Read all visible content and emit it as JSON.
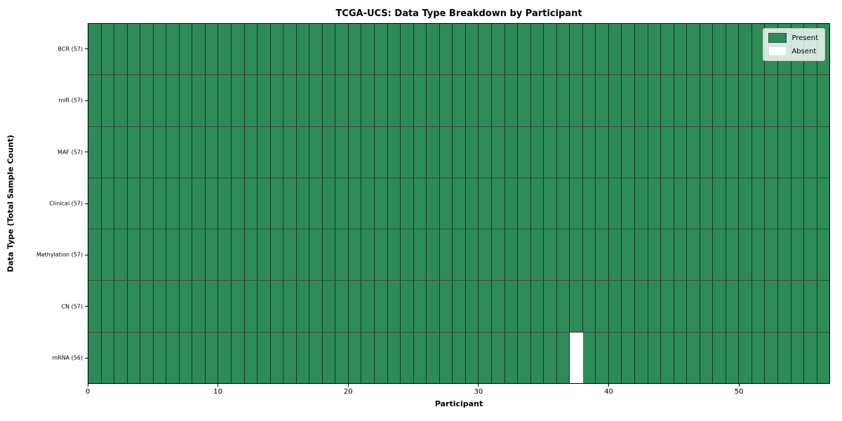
{
  "figure": {
    "title": "TCGA-UCS: Data Type Breakdown by Participant",
    "xlabel": "Participant",
    "ylabel": "Data Type (Total Sample Count)"
  },
  "legend": {
    "items": [
      {
        "name": "present",
        "label": "Present",
        "color": "#2e8b57",
        "edge": "rgba(0,0,0,0.35)"
      },
      {
        "name": "absent",
        "label": "Absent",
        "color": "#ffffff",
        "edge": "#dddddd"
      }
    ]
  },
  "chart_data": {
    "type": "heatmap",
    "title": "TCGA-UCS: Data Type Breakdown by Participant",
    "xlabel": "Participant",
    "ylabel": "Data Type (Total Sample Count)",
    "x_ticks": [
      0,
      10,
      20,
      30,
      40,
      50
    ],
    "xlim": [
      0,
      57
    ],
    "n_participants": 57,
    "rows": [
      {
        "label": "BCR (57)",
        "data_type": "BCR",
        "total_samples": 57,
        "absent_participants": []
      },
      {
        "label": "miR (57)",
        "data_type": "miR",
        "total_samples": 57,
        "absent_participants": []
      },
      {
        "label": "MAF (57)",
        "data_type": "MAF",
        "total_samples": 57,
        "absent_participants": []
      },
      {
        "label": "Clinical (57)",
        "data_type": "Clinical",
        "total_samples": 57,
        "absent_participants": []
      },
      {
        "label": "Methylation (57)",
        "data_type": "Methylation",
        "total_samples": 57,
        "absent_participants": []
      },
      {
        "label": "CN (57)",
        "data_type": "CN",
        "total_samples": 57,
        "absent_participants": []
      },
      {
        "label": "mRNA (56)",
        "data_type": "mRNA",
        "total_samples": 56,
        "absent_participants": [
          37
        ]
      }
    ],
    "colors": {
      "present": "#2e8b57",
      "absent": "#ffffff"
    },
    "legend_position": "upper right",
    "grid": "cell-borders"
  }
}
